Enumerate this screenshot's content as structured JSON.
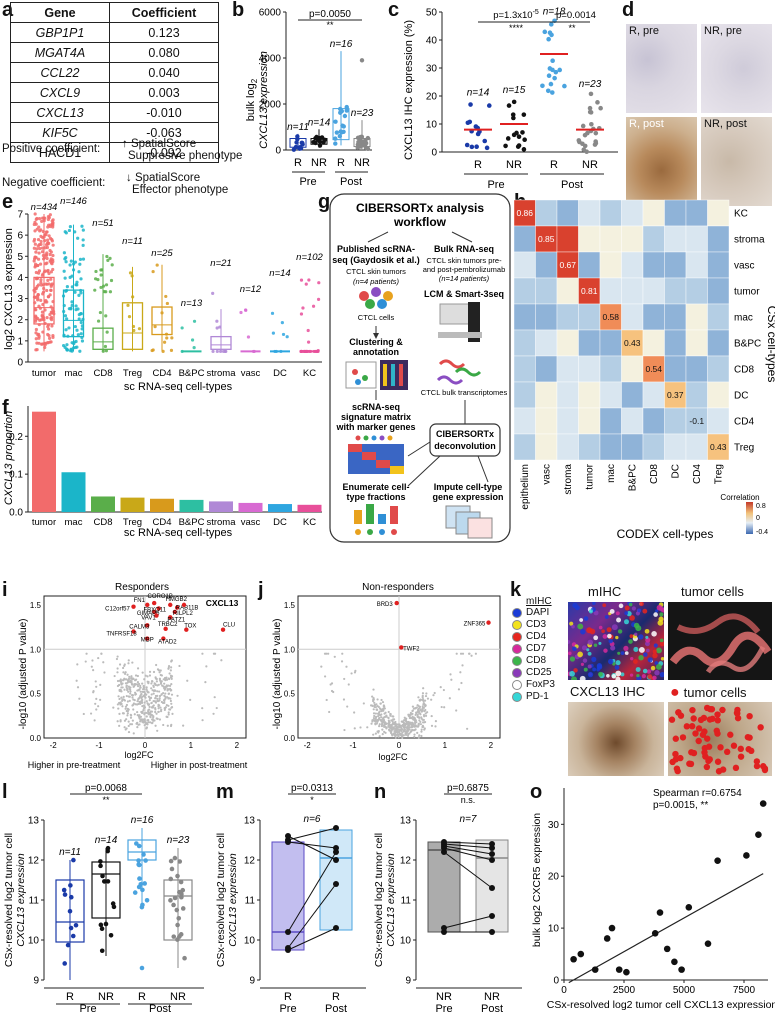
{
  "panels": {
    "a": "a",
    "b": "b",
    "c": "c",
    "d": "d",
    "e": "e",
    "f": "f",
    "g": "g",
    "h": "h",
    "i": "i",
    "j": "j",
    "k": "k",
    "l": "l",
    "m": "m",
    "n": "n",
    "o": "o"
  },
  "table": {
    "headers": [
      "Gene",
      "Coefficient"
    ],
    "rows": [
      {
        "gene": "GBP1P1",
        "coef": "0.123",
        "italic": true
      },
      {
        "gene": "MGAT4A",
        "coef": "0.080",
        "italic": true
      },
      {
        "gene": "CCL22",
        "coef": "0.040",
        "italic": true
      },
      {
        "gene": "CXCL9",
        "coef": "0.003",
        "italic": true
      },
      {
        "gene": "CXCL13",
        "coef": "-0.010",
        "italic": true
      },
      {
        "gene": "KIF5C",
        "coef": "-0.063",
        "italic": true
      },
      {
        "gene": "HACD1",
        "coef": "-0.092",
        "italic": false
      }
    ],
    "pos_label": "Positive coefficient:",
    "pos_desc1": "↑ SpatialScore",
    "pos_desc2": "Suppresive phenotype",
    "neg_label": "Negative coefficient:",
    "neg_desc1": "↓ SpatialScore",
    "neg_desc2": "Effector phenotype"
  },
  "panel_b": {
    "ylabel1": "bulk log",
    "ylabel2": "CXCL13 expression",
    "yticks": [
      "0",
      "2000",
      "4000",
      "6000"
    ],
    "groups": [
      "R",
      "NR",
      "R",
      "NR"
    ],
    "group_labels": [
      "Pre",
      "Post"
    ],
    "ns": [
      "n=11",
      "n=14",
      "n=16",
      "n=23"
    ],
    "pval": "p=0.0050",
    "stars": "**"
  },
  "panel_c": {
    "ylabel": "CXCL13 IHC expression (%)",
    "yticks": [
      "0",
      "10",
      "20",
      "30",
      "40",
      "50"
    ],
    "groups": [
      "R",
      "NR",
      "R",
      "NR"
    ],
    "group_labels": [
      "Pre",
      "Post"
    ],
    "ns": [
      "n=14",
      "n=15",
      "n=18",
      "n=23"
    ],
    "p1": "p=1.3x10",
    "p1exp": "-5",
    "p1stars": "****",
    "p2": "p=0.0014",
    "p2stars": "**"
  },
  "panel_d": {
    "labels": [
      "R, pre",
      "NR, pre",
      "R, post",
      "NR, post"
    ]
  },
  "panel_e": {
    "ylabel": "log2 CXCL13 expression",
    "yticks": [
      "0",
      "1",
      "2",
      "3",
      "4",
      "5",
      "6",
      "7"
    ],
    "xlabel": "sc RNA-seq cell-types",
    "categories": [
      "tumor",
      "mac",
      "CD8",
      "Treg",
      "CD4",
      "B&PC",
      "stroma",
      "vasc",
      "DC",
      "KC"
    ],
    "ns": [
      "n=434",
      "n=146",
      "n=51",
      "n=11",
      "n=25",
      "n=13",
      "n=21",
      "n=12",
      "n=14",
      "n=102"
    ],
    "colors": [
      "#f26b6b",
      "#1bb5c9",
      "#5aae4a",
      "#c9a818",
      "#d89a1c",
      "#2dbfa2",
      "#b088d6",
      "#d86ad2",
      "#2ea6e0",
      "#e84f9a"
    ]
  },
  "panel_f": {
    "ylabel": "CXCL13 proportion",
    "yticks": [
      "0.0",
      "0.1",
      "0.2"
    ],
    "xlabel": "sc RNA-seq cell-types",
    "categories": [
      "tumor",
      "mac",
      "CD8",
      "Treg",
      "CD4",
      "B&PC",
      "stroma",
      "vasc",
      "DC",
      "KC"
    ]
  },
  "chart_data": [
    {
      "type": "bar",
      "categories": [
        "tumor",
        "mac",
        "CD8",
        "Treg",
        "CD4",
        "B&PC",
        "stroma",
        "vasc",
        "DC",
        "KC"
      ],
      "values": [
        0.265,
        0.105,
        0.041,
        0.038,
        0.035,
        0.032,
        0.028,
        0.024,
        0.021,
        0.019
      ],
      "xlabel": "sc RNA-seq cell-types",
      "ylabel": "CXCL13 proportion",
      "ylim": [
        0,
        0.28
      ]
    },
    {
      "type": "heatmap",
      "rows": [
        "KC",
        "stroma",
        "vasc",
        "tumor",
        "mac",
        "B&PC",
        "CD8",
        "DC",
        "CD4",
        "Treg"
      ],
      "cols": [
        "epithelium",
        "vasc",
        "stroma",
        "tumor",
        "mac",
        "B&PC",
        "CD8",
        "DC",
        "CD4",
        "Treg"
      ],
      "diagonal": [
        0.86,
        0.85,
        0.67,
        0.81,
        0.58,
        0.43,
        0.54,
        0.37,
        -0.1,
        0.43
      ],
      "xlabel": "CODEX cell-types",
      "ylabel": "CSx cell-types",
      "colorbar_label": "Correlation",
      "colorbar_ticks": [
        "0.8",
        "0",
        "-0.4"
      ]
    },
    {
      "type": "scatter",
      "title": "Spearman r=0.6754",
      "xlabel": "CSx-resolved log2 tumor cell CXCL13 expression",
      "ylabel": "bulk log2 CXCR5 expression",
      "xlim": [
        0,
        8500
      ],
      "ylim": [
        0,
        37
      ],
      "x": [
        400,
        700,
        1300,
        1800,
        2000,
        2300,
        2600,
        3800,
        4000,
        4300,
        4600,
        4900,
        5200,
        6000,
        6400,
        7600,
        8100,
        8300
      ],
      "y": [
        4,
        5,
        2,
        8,
        10,
        2,
        1.5,
        9,
        13,
        6,
        3.5,
        2,
        14,
        7,
        23,
        24,
        28,
        34
      ]
    }
  ],
  "panel_g": {
    "title1": "CIBERSORTx analysis",
    "title2": "workflow",
    "left1": "Published scRNA-",
    "left2": "seq (Gaydosik et al.)",
    "left3": "CTCL skin tumors",
    "left4": "(n=4 patients)",
    "right1": "Bulk RNA-seq",
    "right2": "CTCL skin tumors pre-",
    "right3": "and post-pembrolizumab",
    "right4": "(n=14 patients)",
    "ctcl_cells": "CTCL cells",
    "lcm": "LCM & Smart-3seq",
    "clustering1": "Clustering &",
    "clustering2": "annotation",
    "bulk": "CTCL bulk transcriptomes",
    "sig1": "scRNA-seq",
    "sig2": "signature matrix",
    "sig3": "with marker genes",
    "decon1": "CIBERSORTx",
    "decon2": "deconvolution",
    "enum1": "Enumerate cell-",
    "enum2": "type fractions",
    "impute1": "Impute cell-type",
    "impute2": "gene expression"
  },
  "panel_i": {
    "title": "Responders",
    "ylabel": "-log10 (adjusted P value)",
    "xlabel": "log2FC",
    "lower_left": "Higher in pre-treatment",
    "lower_right": "Higher in post-treatment",
    "yticks": [
      "0.0",
      "0.5",
      "1.0",
      "1.5"
    ],
    "xticks": [
      "-2",
      "-1",
      "0",
      "1",
      "2"
    ],
    "genes": [
      "FN1",
      "C12orf57",
      "CORO1B",
      "HMGB2",
      "RAB11B",
      "CXCL13",
      "FBXO11",
      "GIMAP6",
      "RILPL2",
      "PATZ1",
      "VAV1",
      "CALM3",
      "TRBC2",
      "TOX",
      "CLU",
      "TNFRSF18",
      "MBP",
      "ATAD2"
    ]
  },
  "panel_j": {
    "title": "Non-responders",
    "ylabel": "-log10 (adjusted P value)",
    "xlabel": "log2FC",
    "yticks": [
      "0.0",
      "0.5",
      "1.0",
      "1.5"
    ],
    "xticks": [
      "-2",
      "-1",
      "0",
      "1",
      "2"
    ],
    "genes": [
      "BRD3",
      "ZNF365",
      "TWF2"
    ]
  },
  "panel_k": {
    "mihc": "mIHC",
    "legend_title": "mIHC",
    "legend": [
      {
        "label": "DAPI",
        "color": "#1a3bd6"
      },
      {
        "label": "CD3",
        "color": "#f2e21c"
      },
      {
        "label": "CD4",
        "color": "#e6261f"
      },
      {
        "label": "CD7",
        "color": "#d62a9c"
      },
      {
        "label": "CD8",
        "color": "#3bb54a"
      },
      {
        "label": "CD25",
        "color": "#8a3ab9"
      },
      {
        "label": "FoxP3",
        "color": "#ffffff"
      },
      {
        "label": "PD-1",
        "color": "#35d6d6"
      }
    ],
    "tumor_cells": "tumor cells",
    "cxcl13_ihc": "CXCL13 IHC",
    "tumor_cells2": "tumor cells"
  },
  "panel_l": {
    "ylabel1": "CSx-resolved log2 tumor cell",
    "ylabel2": "CXCL13 expression",
    "yticks": [
      "9",
      "10",
      "11",
      "12",
      "13"
    ],
    "groups": [
      "R",
      "NR",
      "R",
      "NR"
    ],
    "group_labels": [
      "Pre",
      "Post"
    ],
    "ns": [
      "n=11",
      "n=14",
      "n=16",
      "n=23"
    ],
    "pval": "p=0.0068",
    "stars": "**"
  },
  "panel_m": {
    "ylabel1": "CSx-resolved log2 tumor cell",
    "ylabel2": "CXCL13 expression",
    "yticks": [
      "9",
      "10",
      "11",
      "12",
      "13"
    ],
    "groups": [
      "R",
      "R"
    ],
    "group_labels": [
      "Pre",
      "Post"
    ],
    "n": "n=6",
    "pval": "p=0.0313",
    "stars": "*"
  },
  "panel_n": {
    "ylabel1": "CSx-resolved log2 tumor cell",
    "ylabel2": "CXCL13 expression",
    "yticks": [
      "9",
      "10",
      "11",
      "12",
      "13"
    ],
    "groups": [
      "NR",
      "NR"
    ],
    "group_labels": [
      "Pre",
      "Post"
    ],
    "n": "n=7",
    "pval": "p=0.6875",
    "stars": "n.s."
  },
  "panel_o": {
    "stat1": "Spearman r=0.6754",
    "stat2": "p=0.0015, **",
    "xticks": [
      "0",
      "2500",
      "5000",
      "7500"
    ],
    "yticks": [
      "0",
      "10",
      "20",
      "30"
    ],
    "xlabel": "CSx-resolved log2 tumor cell CXCL13 expression",
    "ylabel": "bulk log2 CXCR5 expression"
  }
}
